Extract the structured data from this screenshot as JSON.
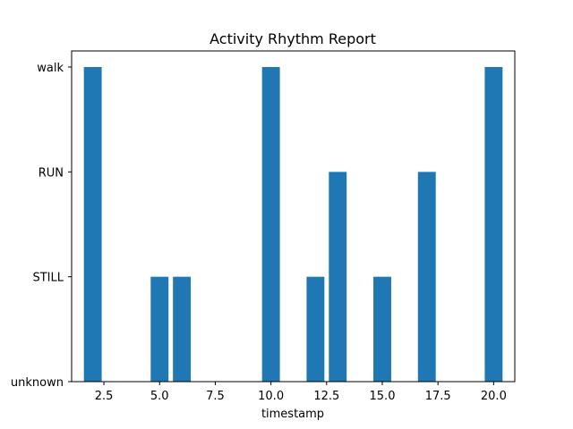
{
  "chart_data": {
    "type": "bar",
    "title": "Activity Rhythm Report",
    "xlabel": "timestamp",
    "ylabel": "",
    "x": [
      2,
      5,
      6,
      10,
      12,
      13,
      15,
      17,
      20
    ],
    "values": [
      "walk",
      "STILL",
      "STILL",
      "walk",
      "STILL",
      "RUN",
      "STILL",
      "RUN",
      "walk"
    ],
    "y_categories": [
      "unknown",
      "STILL",
      "RUN",
      "walk"
    ],
    "xlim": [
      1.05,
      20.95
    ],
    "ylim": [
      0,
      3
    ],
    "xticks": [
      2.5,
      5.0,
      7.5,
      10.0,
      12.5,
      15.0,
      17.5,
      20.0
    ],
    "xtick_labels": [
      "2.5",
      "5.0",
      "7.5",
      "10.0",
      "12.5",
      "15.0",
      "17.5",
      "20.0"
    ],
    "bar_width": 0.8,
    "bar_color": "#1f77b4",
    "grid": false
  }
}
